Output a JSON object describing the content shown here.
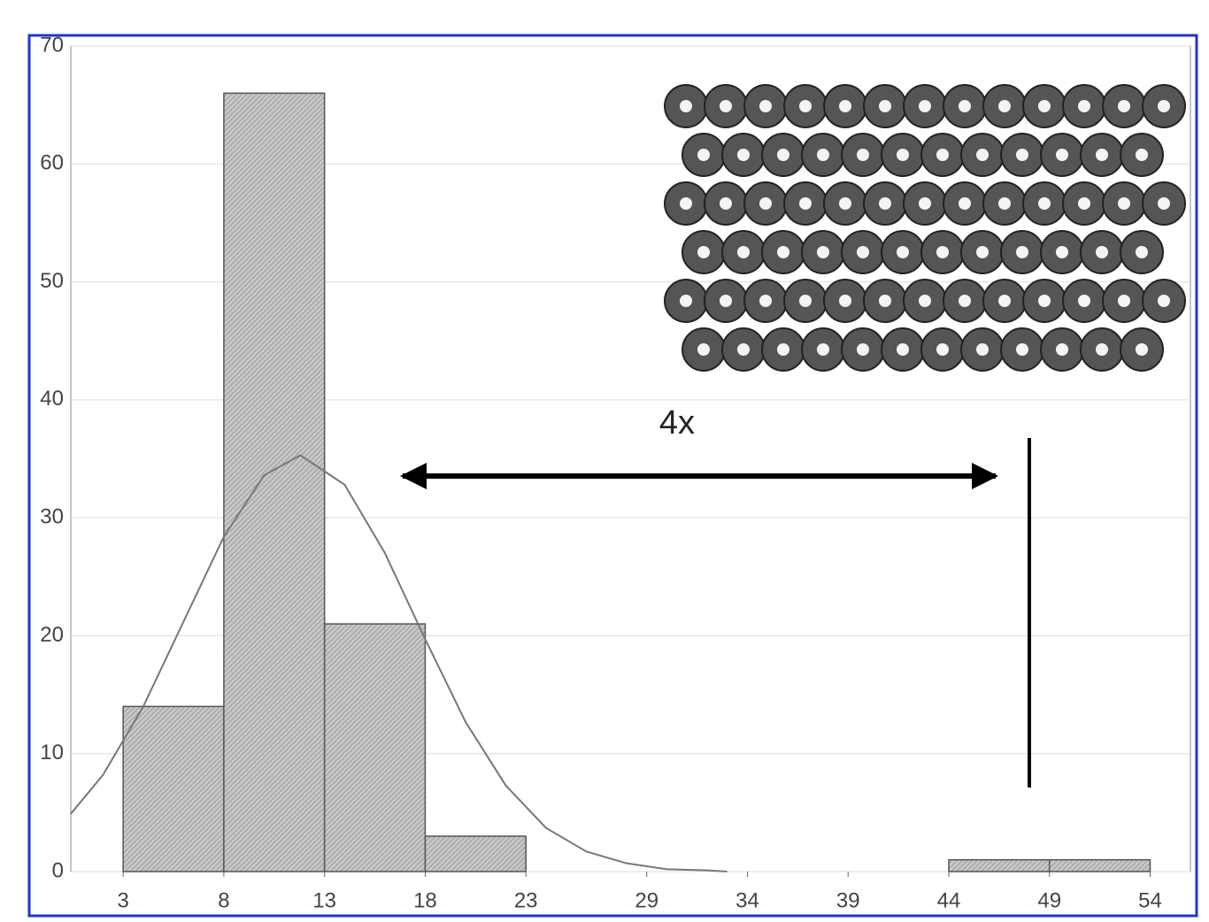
{
  "chart_data": {
    "type": "histogram",
    "bins": [
      3,
      8,
      13,
      18,
      23,
      29,
      34,
      39,
      44,
      49,
      54
    ],
    "values": [
      14,
      66,
      21,
      3,
      0,
      0,
      0,
      0,
      1,
      1
    ],
    "color": "#bdbdbd",
    "curve": {
      "x": [
        0.4,
        2,
        4,
        6,
        8,
        10,
        11.8,
        14,
        16,
        18,
        20,
        22,
        24,
        26,
        28,
        30,
        32,
        33
      ],
      "values": [
        4.9,
        8.2,
        14.0,
        21.2,
        28.4,
        33.6,
        35.3,
        32.8,
        27.0,
        19.7,
        12.7,
        7.3,
        3.7,
        1.7,
        0.7,
        0.2,
        0.1,
        0.0
      ],
      "color": "#777777"
    },
    "annotation": "4x",
    "xlim": [
      0.4,
      56
    ],
    "xticks": [
      3,
      8,
      13,
      18,
      23,
      29,
      34,
      39,
      44,
      49,
      54
    ],
    "ylim": [
      0,
      70
    ],
    "yticks": [
      0,
      10,
      20,
      30,
      40,
      50,
      60,
      70
    ],
    "grid": true
  }
}
